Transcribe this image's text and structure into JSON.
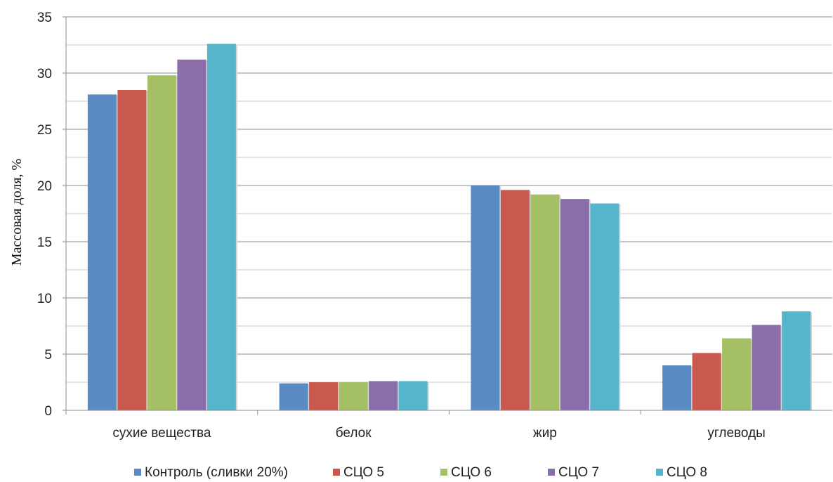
{
  "chart_data": {
    "type": "bar",
    "title": "",
    "xlabel": "",
    "ylabel": "Массовая доля, %",
    "ylim": [
      0,
      35
    ],
    "yticks": [
      0,
      5,
      10,
      15,
      20,
      25,
      30,
      35
    ],
    "grid": true,
    "legend_position": "bottom",
    "categories": [
      "сухие вещества",
      "белок",
      "жир",
      "углеводы"
    ],
    "series": [
      {
        "name": "Контроль (сливки 20%)",
        "color": "#5b8bc5",
        "values": [
          28.1,
          2.4,
          20.0,
          4.0
        ]
      },
      {
        "name": "СЦО 5",
        "color": "#c9584f",
        "values": [
          28.5,
          2.5,
          19.6,
          5.1
        ]
      },
      {
        "name": "СЦО 6",
        "color": "#a5c064",
        "values": [
          29.8,
          2.5,
          19.2,
          6.4
        ]
      },
      {
        "name": "СЦО 7",
        "color": "#8a6eaa",
        "values": [
          31.2,
          2.6,
          18.8,
          7.6
        ]
      },
      {
        "name": "СЦО 8",
        "color": "#55b5cc",
        "values": [
          32.6,
          2.6,
          18.4,
          8.8
        ]
      }
    ]
  }
}
